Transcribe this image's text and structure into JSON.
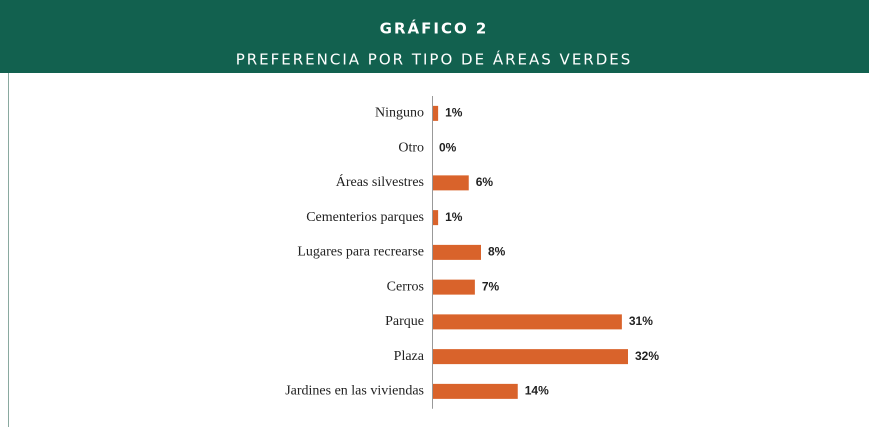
{
  "chart_data": {
    "type": "hbar",
    "title": "GRÁFICO 2",
    "subtitle": "PREFERENCIA POR TIPO DE ÁREAS VERDES",
    "categories": [
      "Ninguno",
      "Otro",
      "Áreas silvestres",
      "Cementerios parques",
      "Lugares para recrearse",
      "Cerros",
      "Parque",
      "Plaza",
      "Jardines en las viviendas"
    ],
    "values": [
      1,
      0,
      6,
      1,
      8,
      7,
      31,
      32,
      14
    ],
    "value_labels": [
      "1%",
      "0%",
      "6%",
      "1%",
      "8%",
      "7%",
      "31%",
      "32%",
      "14%"
    ],
    "color": "#d9632b"
  }
}
